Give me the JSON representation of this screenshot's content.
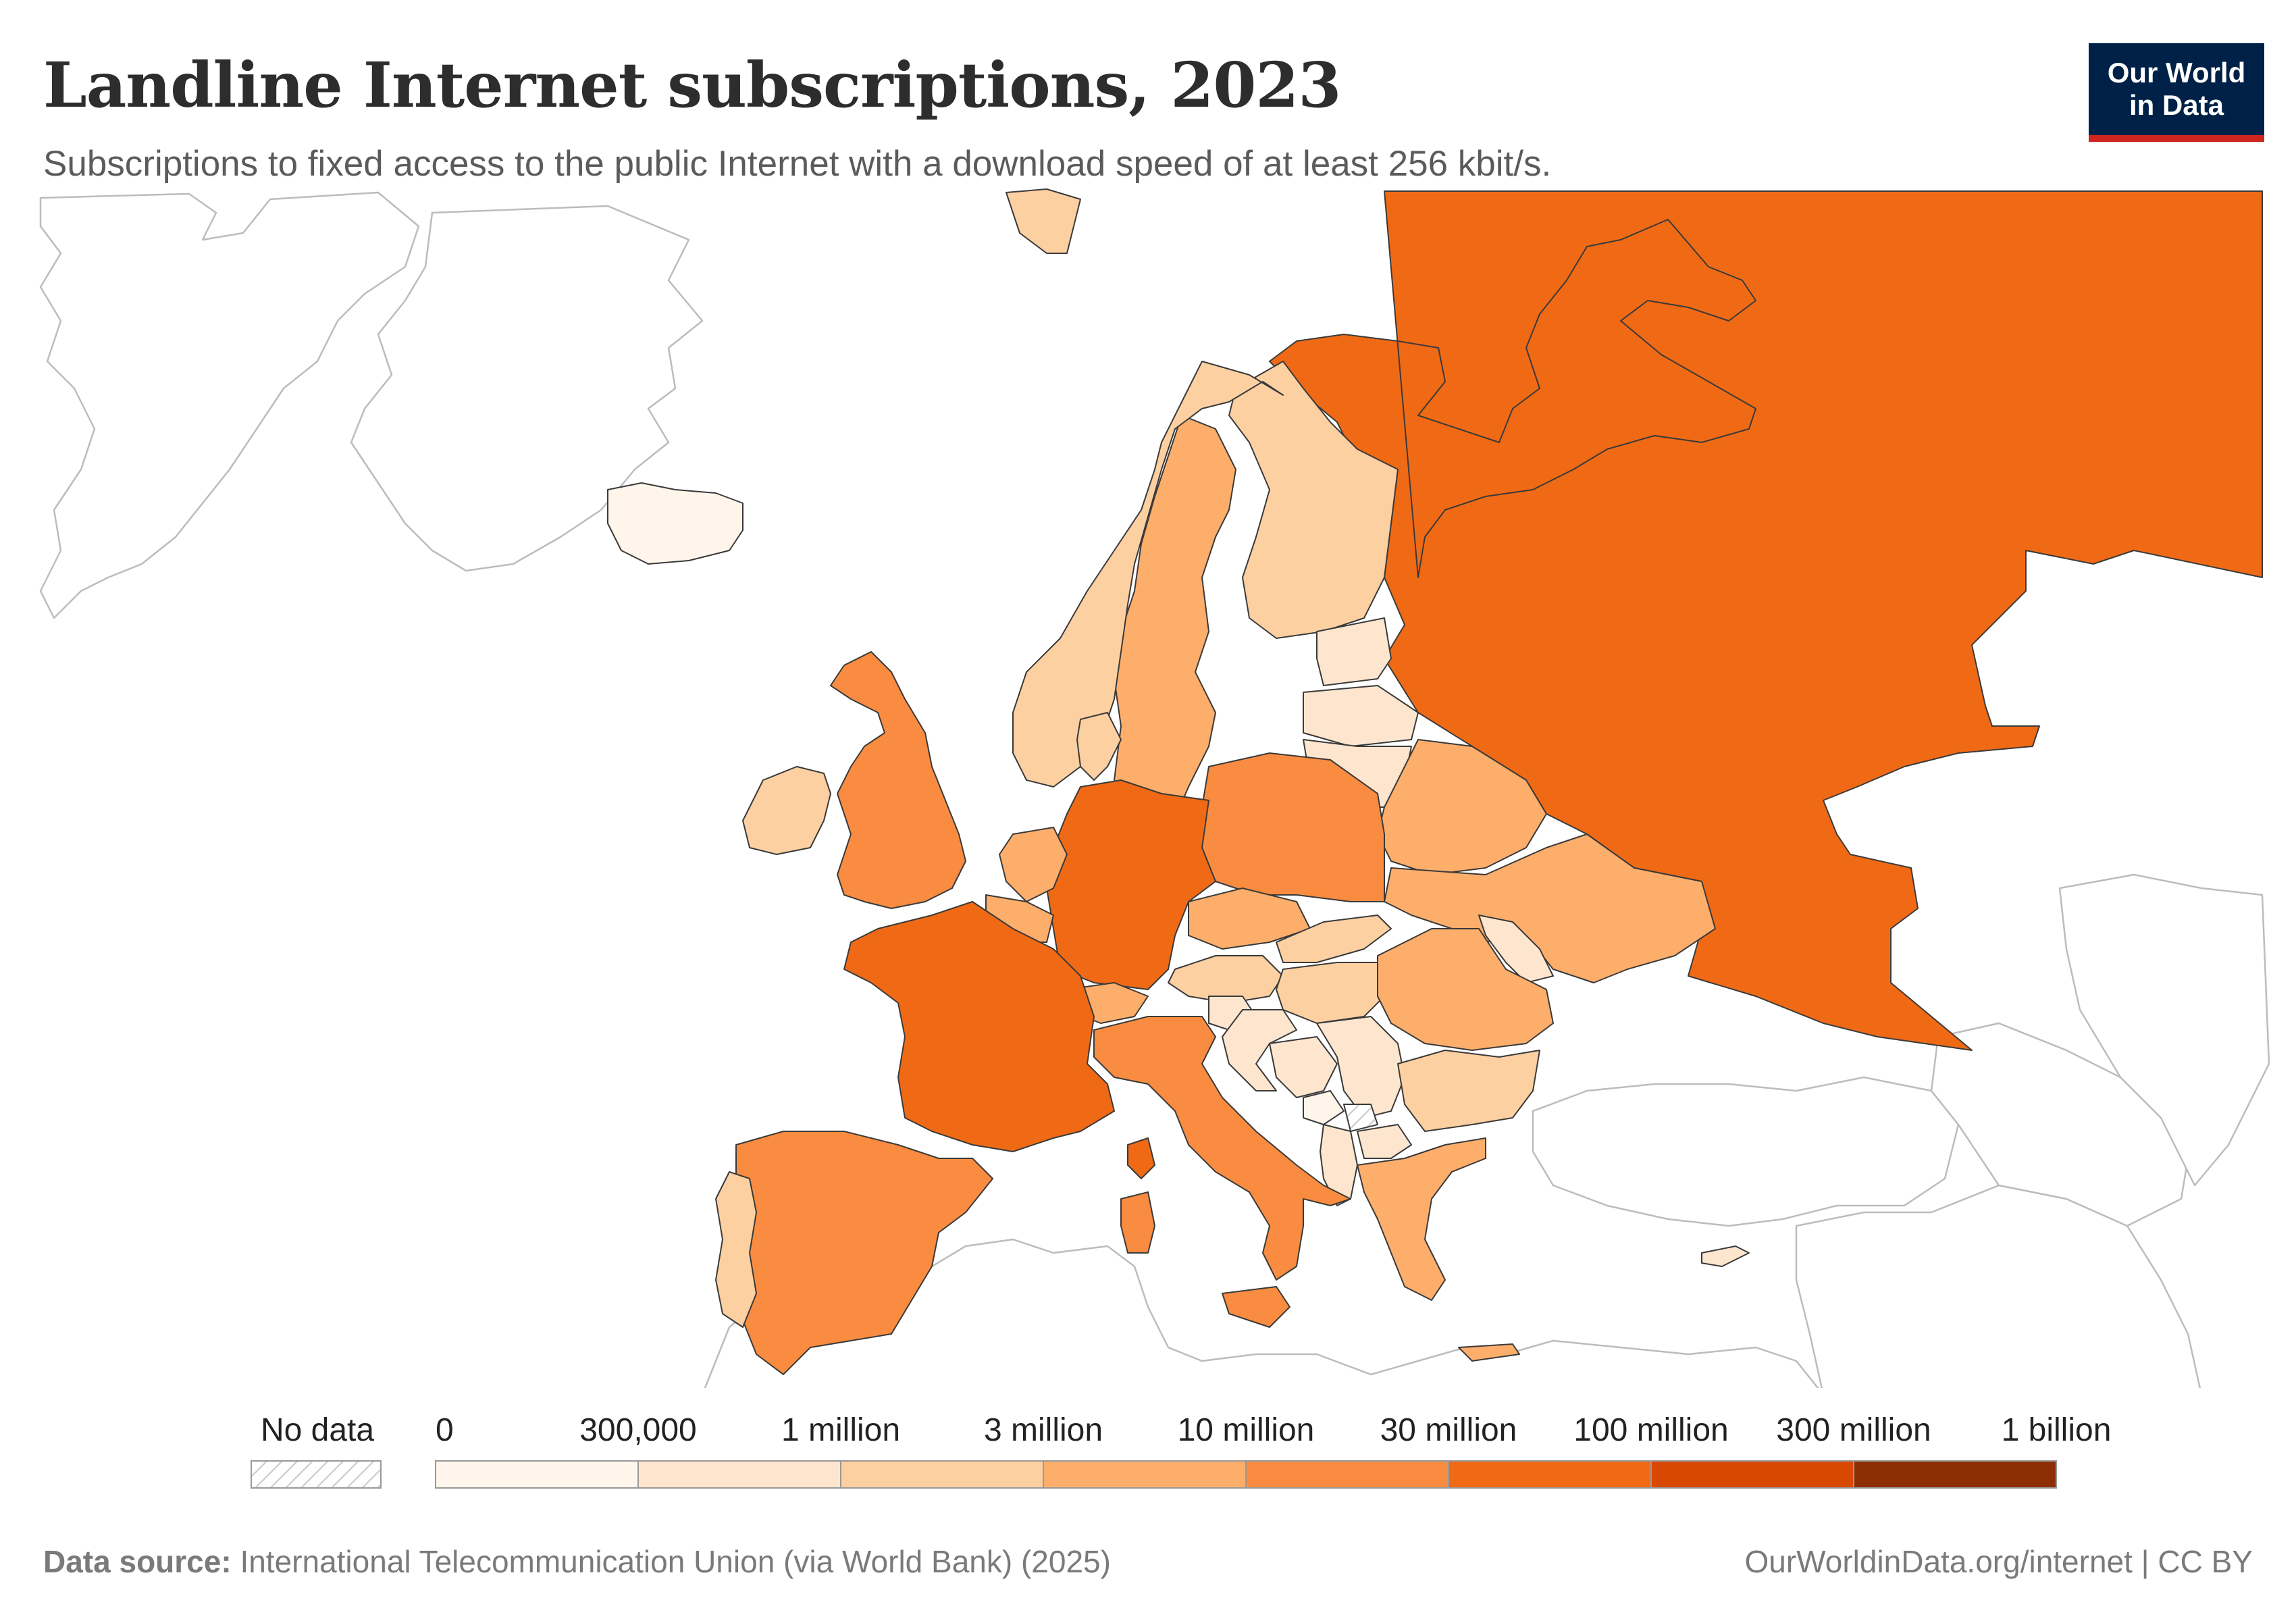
{
  "header": {
    "title": "Landline Internet subscriptions, 2023",
    "subtitle": "Subscriptions to fixed access to the public Internet with a download speed of at least 256 kbit/s."
  },
  "logo": {
    "line1": "Our World",
    "line2": "in Data",
    "bg_color": "#002147",
    "accent_color": "#ce261e"
  },
  "legend": {
    "no_data_label": "No data",
    "bins": [
      {
        "label": "0",
        "color": "#fff5eb"
      },
      {
        "label": "300,000",
        "color": "#fee6ce"
      },
      {
        "label": "1 million",
        "color": "#fdd0a2"
      },
      {
        "label": "3 million",
        "color": "#fdae6b"
      },
      {
        "label": "10 million",
        "color": "#f98c40"
      },
      {
        "label": "30 million",
        "color": "#f06a15"
      },
      {
        "label": "100 million",
        "color": "#d94801"
      },
      {
        "label": "300 million",
        "color": "#8c2d04"
      }
    ],
    "last_label": "1 billion"
  },
  "footer": {
    "source_label": "Data source:",
    "source_text": "International Telecommunication Union (via World Bank) (2025)",
    "right_text": "OurWorldinData.org/internet | CC BY"
  },
  "map_regions": [
    {
      "name": "russia",
      "fill": "#f06a15"
    },
    {
      "name": "germany",
      "fill": "#f06a15"
    },
    {
      "name": "france",
      "fill": "#f06a15"
    },
    {
      "name": "united-kingdom",
      "fill": "#f98c40"
    },
    {
      "name": "italy",
      "fill": "#f98c40"
    },
    {
      "name": "spain",
      "fill": "#f98c40"
    },
    {
      "name": "poland",
      "fill": "#f98c40"
    },
    {
      "name": "ukraine",
      "fill": "#fdae6b"
    },
    {
      "name": "romania",
      "fill": "#fdae6b"
    },
    {
      "name": "sweden",
      "fill": "#fdae6b"
    },
    {
      "name": "netherlands",
      "fill": "#fdae6b"
    },
    {
      "name": "belarus",
      "fill": "#fdae6b"
    },
    {
      "name": "czechia",
      "fill": "#fdae6b"
    },
    {
      "name": "greece",
      "fill": "#fdae6b"
    },
    {
      "name": "switzerland",
      "fill": "#fdae6b"
    },
    {
      "name": "belgium",
      "fill": "#fdae6b"
    },
    {
      "name": "norway",
      "fill": "#fdd0a2"
    },
    {
      "name": "finland",
      "fill": "#fdd0a2"
    },
    {
      "name": "ireland",
      "fill": "#fdd0a2"
    },
    {
      "name": "portugal",
      "fill": "#fdd0a2"
    },
    {
      "name": "denmark",
      "fill": "#fdd0a2"
    },
    {
      "name": "austria",
      "fill": "#fdd0a2"
    },
    {
      "name": "hungary",
      "fill": "#fdd0a2"
    },
    {
      "name": "bulgaria",
      "fill": "#fdd0a2"
    },
    {
      "name": "slovakia",
      "fill": "#fdd0a2"
    },
    {
      "name": "svalbard",
      "fill": "#fdd0a2"
    },
    {
      "name": "serbia",
      "fill": "#fee6ce"
    },
    {
      "name": "croatia",
      "fill": "#fee6ce"
    },
    {
      "name": "estonia",
      "fill": "#fee6ce"
    },
    {
      "name": "latvia",
      "fill": "#fee6ce"
    },
    {
      "name": "lithuania",
      "fill": "#fee6ce"
    },
    {
      "name": "moldova",
      "fill": "#fee6ce"
    },
    {
      "name": "bosnia",
      "fill": "#fee6ce"
    },
    {
      "name": "albania",
      "fill": "#fee6ce"
    },
    {
      "name": "north-macedonia",
      "fill": "#fee6ce"
    },
    {
      "name": "slovenia",
      "fill": "#fee6ce"
    },
    {
      "name": "cyprus",
      "fill": "#fee6ce"
    },
    {
      "name": "iceland",
      "fill": "#fff5eb"
    },
    {
      "name": "montenegro",
      "fill": "#fff5eb"
    }
  ]
}
